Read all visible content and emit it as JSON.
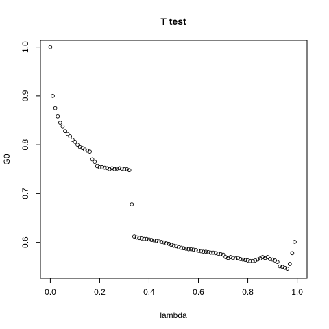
{
  "chart_data": {
    "type": "scatter",
    "title": "T test",
    "xlabel": "lambda",
    "ylabel": "G0",
    "xlim": [
      -0.04,
      1.04
    ],
    "ylim": [
      0.5265,
      1.0135
    ],
    "xticks": [
      0.0,
      0.2,
      0.4,
      0.6,
      0.8,
      1.0
    ],
    "xtick_labels": [
      "0.0",
      "0.2",
      "0.4",
      "0.6",
      "0.8",
      "1.0"
    ],
    "yticks": [
      0.6,
      0.7,
      0.8,
      0.9,
      1.0
    ],
    "ytick_labels": [
      "0.6",
      "0.7",
      "0.8",
      "0.9",
      "1.0"
    ],
    "marker": "open-circle",
    "grid": false,
    "legend": "none",
    "series": [
      {
        "x": [
          0.0,
          0.01,
          0.02,
          0.03,
          0.04,
          0.05,
          0.06,
          0.07,
          0.08,
          0.09,
          0.1,
          0.11,
          0.12,
          0.13,
          0.14,
          0.15,
          0.16,
          0.17,
          0.18,
          0.19,
          0.2,
          0.21,
          0.22,
          0.23,
          0.24,
          0.25,
          0.26,
          0.27,
          0.28,
          0.29,
          0.3,
          0.31,
          0.32,
          0.33,
          0.34,
          0.35,
          0.36,
          0.37,
          0.38,
          0.39,
          0.4,
          0.41,
          0.42,
          0.43,
          0.44,
          0.45,
          0.46,
          0.47,
          0.48,
          0.49,
          0.5,
          0.51,
          0.52,
          0.53,
          0.54,
          0.55,
          0.56,
          0.57,
          0.58,
          0.59,
          0.6,
          0.61,
          0.62,
          0.63,
          0.64,
          0.65,
          0.66,
          0.67,
          0.68,
          0.69,
          0.7,
          0.71,
          0.72,
          0.73,
          0.74,
          0.75,
          0.76,
          0.77,
          0.78,
          0.79,
          0.8,
          0.81,
          0.82,
          0.83,
          0.84,
          0.85,
          0.86,
          0.87,
          0.88,
          0.89,
          0.9,
          0.91,
          0.92,
          0.93,
          0.94,
          0.95,
          0.96,
          0.97,
          0.98,
          0.99
        ],
        "y": [
          1.0,
          0.9,
          0.875,
          0.858,
          0.845,
          0.837,
          0.828,
          0.822,
          0.817,
          0.81,
          0.806,
          0.8,
          0.795,
          0.793,
          0.79,
          0.788,
          0.786,
          0.77,
          0.765,
          0.756,
          0.754,
          0.754,
          0.753,
          0.752,
          0.75,
          0.752,
          0.75,
          0.751,
          0.752,
          0.751,
          0.75,
          0.75,
          0.748,
          0.678,
          0.612,
          0.61,
          0.609,
          0.608,
          0.607,
          0.607,
          0.606,
          0.605,
          0.604,
          0.603,
          0.602,
          0.601,
          0.6,
          0.598,
          0.597,
          0.595,
          0.593,
          0.592,
          0.59,
          0.589,
          0.588,
          0.587,
          0.586,
          0.586,
          0.585,
          0.584,
          0.583,
          0.582,
          0.581,
          0.581,
          0.58,
          0.579,
          0.579,
          0.578,
          0.577,
          0.576,
          0.575,
          0.57,
          0.568,
          0.57,
          0.568,
          0.567,
          0.568,
          0.566,
          0.565,
          0.564,
          0.563,
          0.562,
          0.562,
          0.563,
          0.565,
          0.567,
          0.57,
          0.568,
          0.57,
          0.566,
          0.565,
          0.563,
          0.56,
          0.551,
          0.55,
          0.548,
          0.546,
          0.556,
          0.578,
          0.601
        ]
      }
    ]
  }
}
